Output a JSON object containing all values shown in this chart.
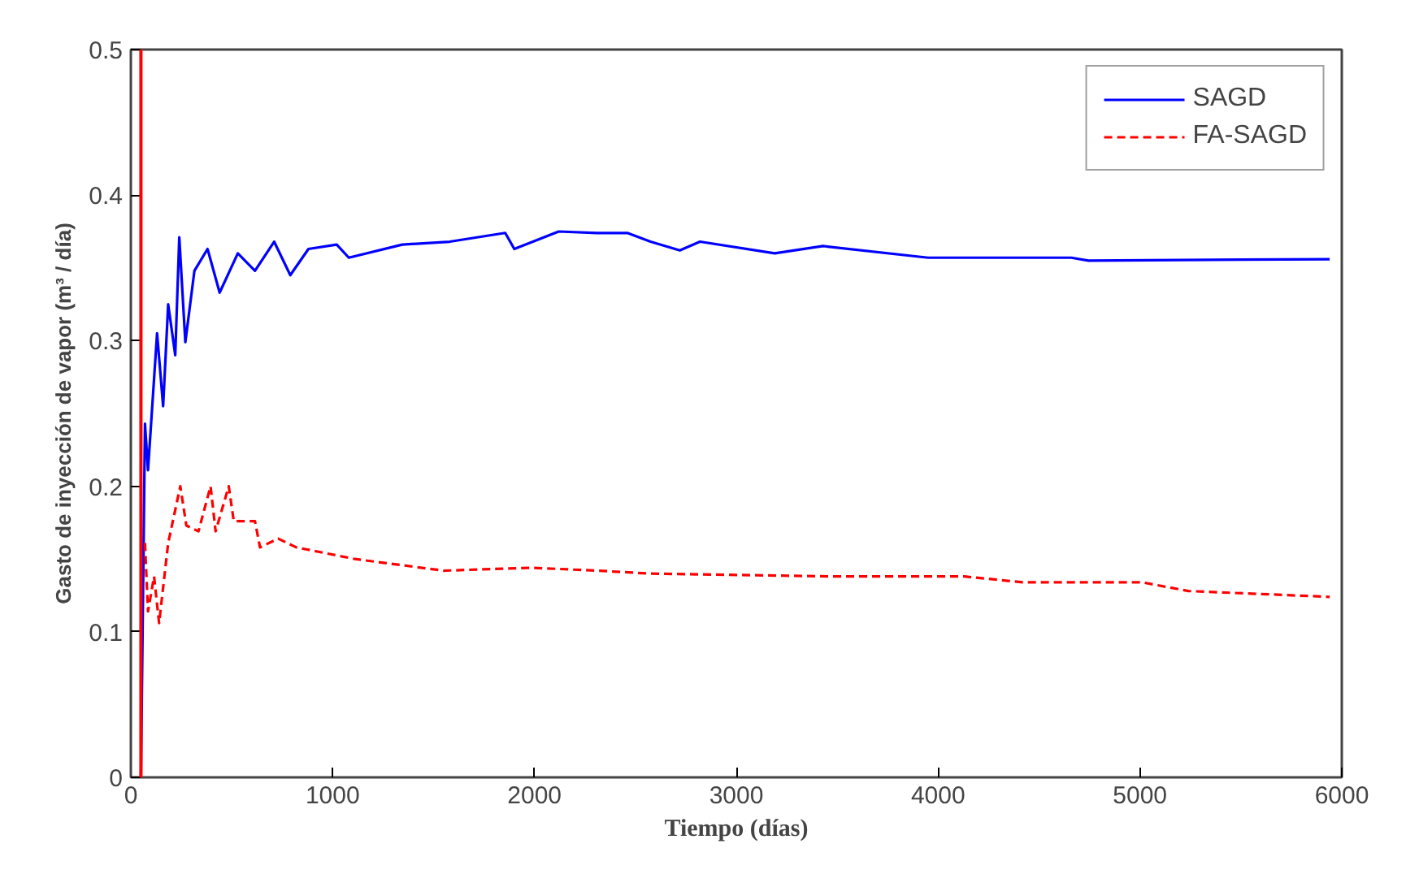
{
  "chart_data": {
    "type": "line",
    "xlabel": "Tiempo (días)",
    "ylabel": "Gasto de inyección de vapor (m³ / día)",
    "xlim": [
      0,
      6000
    ],
    "ylim": [
      0,
      0.5
    ],
    "xticks": [
      0,
      1000,
      2000,
      3000,
      4000,
      5000,
      6000
    ],
    "yticks": [
      0,
      0.1,
      0.2,
      0.3,
      0.4,
      0.5
    ],
    "grid": false,
    "legend": "top right",
    "marker": "none",
    "ref_lines": [
      {
        "axis": "x",
        "value": 50,
        "label": null,
        "color": "#ff0000",
        "line_style": "solid"
      }
    ],
    "series": [
      {
        "name": "SAGD",
        "color": "#0000ff",
        "line_style": "solid",
        "x": [
          50,
          70,
          85,
          130,
          160,
          185,
          220,
          240,
          270,
          315,
          380,
          440,
          530,
          615,
          710,
          790,
          880,
          1020,
          1080,
          1345,
          1580,
          1855,
          1900,
          2120,
          2310,
          2460,
          2575,
          2720,
          2820,
          3190,
          3430,
          3950,
          4660,
          4745,
          5940
        ],
        "values": [
          0,
          0.243,
          0.211,
          0.305,
          0.255,
          0.325,
          0.29,
          0.371,
          0.299,
          0.348,
          0.363,
          0.333,
          0.36,
          0.348,
          0.368,
          0.345,
          0.363,
          0.366,
          0.357,
          0.366,
          0.368,
          0.374,
          0.363,
          0.375,
          0.374,
          0.374,
          0.368,
          0.362,
          0.368,
          0.36,
          0.365,
          0.357,
          0.357,
          0.355,
          0.356
        ]
      },
      {
        "name": "FA-SAGD",
        "color": "#ff0000",
        "line_style": "dashed",
        "x": [
          70,
          85,
          115,
          140,
          185,
          245,
          275,
          335,
          395,
          420,
          485,
          510,
          615,
          640,
          730,
          820,
          1110,
          1550,
          1985,
          2310,
          2575,
          3480,
          4130,
          4420,
          5010,
          5240,
          5940
        ],
        "values": [
          0.161,
          0.114,
          0.138,
          0.106,
          0.161,
          0.2,
          0.173,
          0.169,
          0.2,
          0.169,
          0.2,
          0.176,
          0.176,
          0.158,
          0.164,
          0.158,
          0.15,
          0.142,
          0.144,
          0.142,
          0.14,
          0.138,
          0.138,
          0.134,
          0.134,
          0.128,
          0.124
        ]
      }
    ]
  }
}
